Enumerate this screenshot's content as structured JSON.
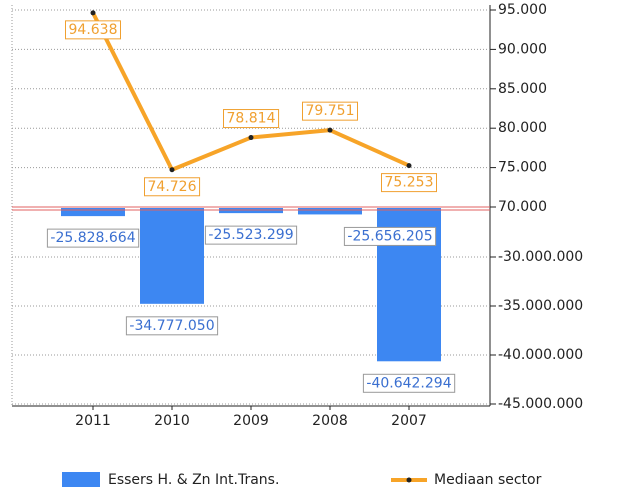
{
  "chart_data": [
    {
      "type": "line",
      "series": [
        {
          "name": "Mediaan sector",
          "color": "#f7a428",
          "values": [
            94638,
            74726,
            78814,
            79751,
            75253
          ],
          "value_labels": [
            "94.638",
            "74.726",
            "78.814",
            "79.751",
            "75.253"
          ]
        }
      ],
      "ylim": [
        70000,
        95000
      ],
      "yticks": [
        {
          "value": 70000,
          "label": "70.000"
        },
        {
          "value": 75000,
          "label": "75.000"
        },
        {
          "value": 80000,
          "label": "80.000"
        },
        {
          "value": 85000,
          "label": "85.000"
        },
        {
          "value": 90000,
          "label": "90.000"
        },
        {
          "value": 95000,
          "label": "95.000"
        }
      ]
    },
    {
      "type": "bar",
      "categories": [
        "2011",
        "2010",
        "2009",
        "2008",
        "2007"
      ],
      "series": [
        {
          "name": "Essers H. & Zn Int.Trans.",
          "color": "#3d87f2",
          "values": [
            -25828664,
            -34777050,
            -25523299,
            -25656205,
            -40642294
          ],
          "value_labels": [
            "-25.828.664",
            "-34.777.050",
            "-25.523.299",
            "-25.656.205",
            "-40.642.294"
          ]
        }
      ],
      "ylim": [
        -45000000,
        -25000000
      ],
      "yticks": [
        {
          "value": -45000000,
          "label": "-45.000.000"
        },
        {
          "value": -40000000,
          "label": "-40.000.000"
        },
        {
          "value": -35000000,
          "label": "-35.000.000"
        },
        {
          "value": -30000000,
          "label": "-30.000.000"
        }
      ]
    }
  ]
}
